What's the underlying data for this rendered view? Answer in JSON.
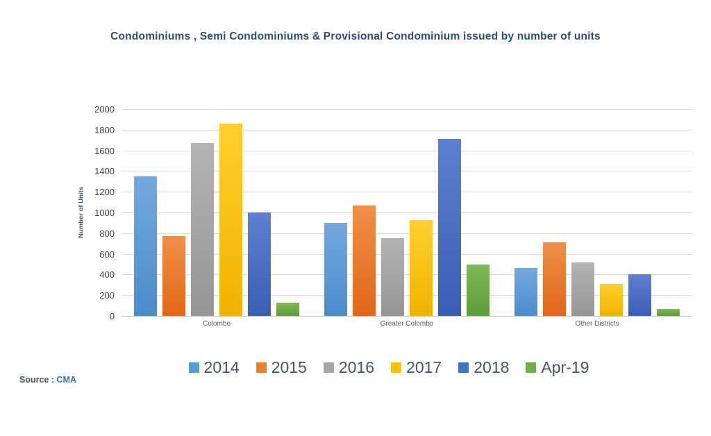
{
  "title": "Condominiums , Semi Condominiums & Provisional Condominium issued by number of units",
  "source": {
    "label": "Source : ",
    "value": "CMA"
  },
  "chart_data": {
    "type": "bar",
    "title": "Condominiums , Semi Condominiums & Provisional Condominium issued by number of units",
    "categories": [
      "Colombo",
      "Greater Colombo",
      "Other Districts"
    ],
    "series": [
      {
        "name": "2014",
        "color": "#5B9BD5",
        "color_top": "#74A9DE",
        "color_bottom": "#4B8CCB",
        "values": [
          1350,
          900,
          460
        ]
      },
      {
        "name": "2015",
        "color": "#ED7D31",
        "color_top": "#F18F49",
        "color_bottom": "#E06717",
        "values": [
          770,
          1070,
          710
        ]
      },
      {
        "name": "2016",
        "color": "#A5A5A5",
        "color_top": "#B4B4B4",
        "color_bottom": "#959595",
        "values": [
          1670,
          750,
          520
        ]
      },
      {
        "name": "2017",
        "color": "#FFC000",
        "color_top": "#FFD02E",
        "color_bottom": "#F0B200",
        "values": [
          1860,
          925,
          310
        ]
      },
      {
        "name": "2018",
        "color": "#4472C4",
        "color_top": "#5E80D0",
        "color_bottom": "#3A5EB4",
        "values": [
          1000,
          1710,
          400
        ]
      },
      {
        "name": "Apr-19",
        "color": "#70AD47",
        "color_top": "#7FB95A",
        "color_bottom": "#5F9C38",
        "values": [
          130,
          500,
          65
        ]
      }
    ],
    "xlabel": "",
    "ylabel": "Number of Units",
    "ylim": [
      0,
      2000
    ],
    "yticks": [
      0,
      200,
      400,
      600,
      800,
      1000,
      1200,
      1400,
      1600,
      1800,
      2000
    ],
    "grid": true,
    "legend_position": "bottom",
    "gridline_color": "#DCDCDC",
    "axis_line_color": "#C3C3C3"
  }
}
